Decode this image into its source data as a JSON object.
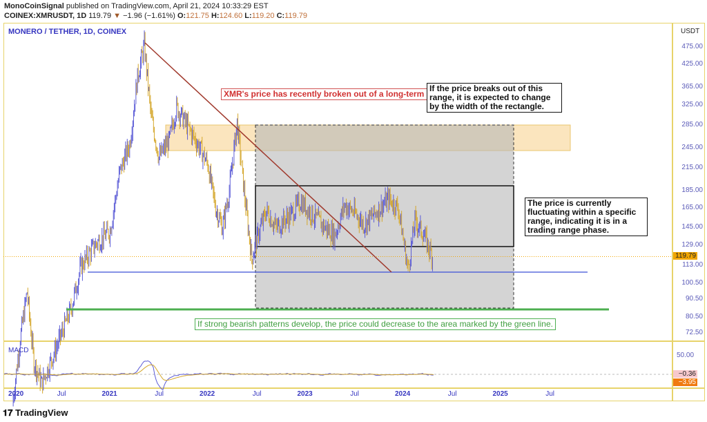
{
  "header": {
    "publisher": "MonoCoinSignal",
    "published_text": "published on TradingView.com, April 21, 2024 10:33:29 EST",
    "symbol": "COINEX:XMRUSDT, 1D",
    "last": "119.79",
    "change": "−1.96 (−1.61%)",
    "open_label": "O:",
    "open": "121.75",
    "high_label": "H:",
    "high": "124.60",
    "low_label": "L:",
    "low": "119.20",
    "close_label": "C:",
    "close": "119.79"
  },
  "chart": {
    "title": "MONERO / TETHER, 1D, COINEX",
    "currency": "USDT",
    "price_labels": [
      "475.00",
      "425.00",
      "365.00",
      "325.00",
      "285.00",
      "245.00",
      "215.00",
      "185.00",
      "165.00",
      "145.00",
      "129.00",
      "113.00",
      "100.50",
      "90.50",
      "80.50",
      "72.50"
    ],
    "current_price": "119.79",
    "time_labels": [
      {
        "t": 2020,
        "label": "2020",
        "year": true
      },
      {
        "t": 2020.5,
        "label": "Jul"
      },
      {
        "t": 2021,
        "label": "2021",
        "year": true
      },
      {
        "t": 2021.5,
        "label": "Jul"
      },
      {
        "t": 2022,
        "label": "2022",
        "year": true
      },
      {
        "t": 2022.5,
        "label": "Jul"
      },
      {
        "t": 2023,
        "label": "2023",
        "year": true
      },
      {
        "t": 2023.5,
        "label": "Jul"
      },
      {
        "t": 2024,
        "label": "2024",
        "year": true
      },
      {
        "t": 2024.5,
        "label": "Jul"
      },
      {
        "t": 2025,
        "label": "2025",
        "year": true
      },
      {
        "t": 2025.5,
        "label": "Jul"
      }
    ],
    "colors": {
      "up": "#5b5bd6",
      "down": "#d4a62a",
      "trendline": "#a0392c",
      "support": "#3a4fd8",
      "target": "#4caf50",
      "zone": "#fbe3b8"
    },
    "price_path": [
      [
        2020.0,
        45
      ],
      [
        2020.08,
        70
      ],
      [
        2020.15,
        95
      ],
      [
        2020.22,
        60
      ],
      [
        2020.3,
        52
      ],
      [
        2020.45,
        66
      ],
      [
        2020.6,
        85
      ],
      [
        2020.7,
        112
      ],
      [
        2020.85,
        130
      ],
      [
        2021.0,
        142
      ],
      [
        2021.1,
        210
      ],
      [
        2021.2,
        250
      ],
      [
        2021.28,
        390
      ],
      [
        2021.35,
        480
      ],
      [
        2021.42,
        300
      ],
      [
        2021.5,
        230
      ],
      [
        2021.6,
        255
      ],
      [
        2021.68,
        320
      ],
      [
        2021.8,
        280
      ],
      [
        2021.9,
        250
      ],
      [
        2022.0,
        220
      ],
      [
        2022.08,
        165
      ],
      [
        2022.15,
        145
      ],
      [
        2022.22,
        185
      ],
      [
        2022.3,
        290
      ],
      [
        2022.38,
        175
      ],
      [
        2022.45,
        118
      ],
      [
        2022.52,
        140
      ],
      [
        2022.6,
        162
      ],
      [
        2022.7,
        145
      ],
      [
        2022.85,
        158
      ],
      [
        2022.95,
        172
      ],
      [
        2023.05,
        160
      ],
      [
        2023.2,
        145
      ],
      [
        2023.3,
        138
      ],
      [
        2023.4,
        168
      ],
      [
        2023.5,
        160
      ],
      [
        2023.6,
        148
      ],
      [
        2023.7,
        158
      ],
      [
        2023.85,
        175
      ],
      [
        2023.95,
        165
      ],
      [
        2024.05,
        110
      ],
      [
        2024.12,
        152
      ],
      [
        2024.2,
        140
      ],
      [
        2024.3,
        119.79
      ]
    ],
    "annotations": {
      "downtrend": "XMR's price has recently broken out of a long-term downtrend.",
      "breakout": "If the price breaks out of this range, it is expected to change by the width of the rectangle.",
      "range": "The price is currently fluctuating within a specific range, indicating it is in a trading range phase.",
      "bearish": "If strong bearish patterns develop, the price could decrease to the area marked by the green line."
    }
  },
  "macd": {
    "title": "MACD",
    "label_50": "50.00",
    "value1": "−0.36",
    "value2": "−3.95"
  },
  "footer": {
    "brand": "TradingView"
  }
}
